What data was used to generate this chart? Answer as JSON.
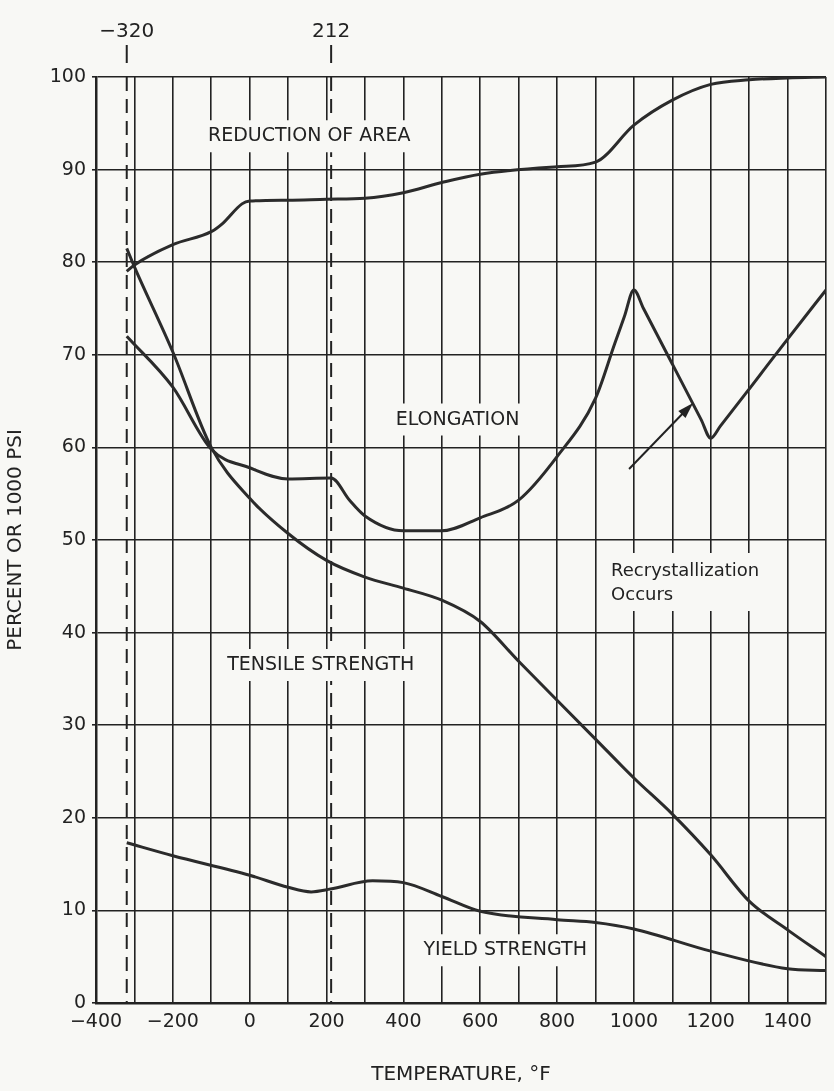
{
  "chart_data": {
    "type": "line",
    "xlabel": "TEMPERATURE, °F",
    "ylabel": "PERCENT OR 1000 PSI",
    "xlim": [
      -400,
      1500
    ],
    "ylim": [
      0,
      100
    ],
    "xticks": [
      -400,
      {
        "value": -300,
        "label": null
      },
      -200,
      {
        "value": -100,
        "label": null
      },
      0,
      {
        "value": 100,
        "label": null
      },
      200,
      {
        "value": 300,
        "label": null
      },
      400,
      {
        "value": 500,
        "label": null
      },
      600,
      {
        "value": 700,
        "label": null
      },
      800,
      {
        "value": 900,
        "label": null
      },
      1000,
      {
        "value": 1100,
        "label": null
      },
      1200,
      {
        "value": 1300,
        "label": null
      },
      1400,
      {
        "value": 1500,
        "label": null
      }
    ],
    "yticks": [
      0,
      10,
      20,
      30,
      40,
      50,
      60,
      70,
      80,
      90,
      100
    ],
    "grid": true,
    "series": [
      {
        "color": "#2b2b2b",
        "x": [
          -320,
          -300,
          -200,
          -100,
          -70,
          -20,
          0,
          100,
          200,
          300,
          400,
          500,
          600,
          800,
          900,
          1000,
          1100,
          1200,
          1300,
          1400,
          1500
        ],
        "values": [
          79,
          79.7,
          81.9,
          83.3,
          84.2,
          86.3,
          86.6,
          86.7,
          86.8,
          86.9,
          87.5,
          88.6,
          89.5,
          90.3,
          90.8,
          94.8,
          97.5,
          99.2,
          99.7,
          99.9,
          100
        ]
      },
      {
        "color": "#2b2b2b",
        "x": [
          -320,
          -200,
          -100,
          0,
          100,
          212,
          260,
          300,
          400,
          500,
          600,
          700,
          800,
          900,
          950,
          975,
          1000,
          1025,
          1100,
          1175,
          1200,
          1225,
          1300,
          1400,
          1500
        ],
        "values": [
          72,
          66.5,
          59.8,
          57.8,
          56.6,
          56.7,
          54.3,
          52.6,
          51,
          51,
          52.4,
          54.3,
          59,
          65.3,
          71.2,
          74.1,
          77,
          75,
          69,
          63,
          61,
          62.3,
          66.3,
          71.7,
          77
        ]
      },
      {
        "color": "#2b2b2b",
        "x": [
          -320,
          -300,
          -200,
          -100,
          0,
          100,
          200,
          300,
          400,
          500,
          600,
          700,
          800,
          900,
          1000,
          1100,
          1200,
          1300,
          1400,
          1500
        ],
        "values": [
          81.5,
          79.5,
          70.3,
          60,
          54.5,
          50.7,
          47.8,
          46,
          44.8,
          43.5,
          41.2,
          36.9,
          32.7,
          28.5,
          24.3,
          20.4,
          16,
          11,
          7.9,
          5
        ]
      },
      {
        "color": "#2b2b2b",
        "x": [
          -320,
          -200,
          0,
          100,
          160,
          210,
          320,
          400,
          500,
          600,
          800,
          900,
          1000,
          1200,
          1400,
          1500
        ],
        "values": [
          17.3,
          15.9,
          13.8,
          12.5,
          12,
          12.3,
          13.2,
          13,
          11.5,
          9.9,
          9,
          8.7,
          8,
          5.6,
          3.7,
          3.5
        ]
      }
    ],
    "ref_lines": [
      {
        "axis": "x",
        "value": -320,
        "label": "−320",
        "line_style": "dashed"
      },
      {
        "axis": "x",
        "value": 212,
        "label": "212",
        "line_style": "dashed"
      }
    ],
    "annotations": [
      "REDUCTION OF AREA",
      "ELONGATION",
      "TENSILE STRENGTH",
      "YIELD STRENGTH",
      "Recrystallization Occurs"
    ]
  }
}
